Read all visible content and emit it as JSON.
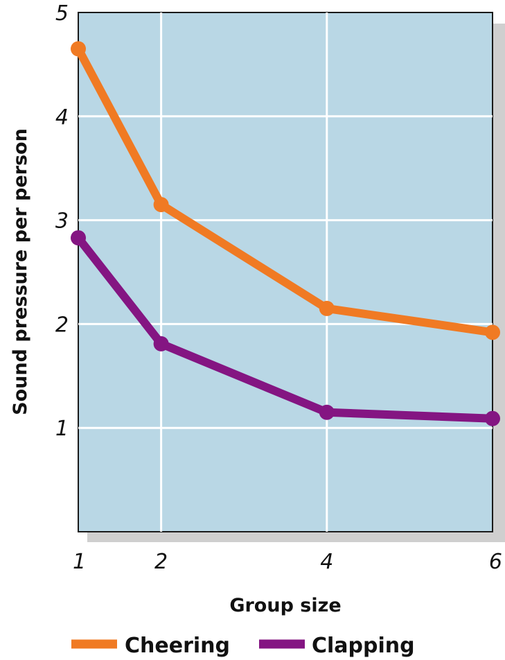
{
  "chart_data": {
    "type": "line",
    "x": [
      1,
      2,
      4,
      6
    ],
    "xticks": [
      "1",
      "2",
      "4",
      "6"
    ],
    "yticks": [
      "1",
      "2",
      "3",
      "4",
      "5"
    ],
    "xlabel": "Group size",
    "ylabel": "Sound pressure per person",
    "xlim": [
      1,
      6
    ],
    "ylim": [
      0,
      5
    ],
    "grid": true,
    "legend_position": "bottom",
    "plot_background": "#b9d7e5",
    "series": [
      {
        "name": "Cheering",
        "color": "#f07a23",
        "values": [
          4.65,
          3.15,
          2.15,
          1.92
        ]
      },
      {
        "name": "Clapping",
        "color": "#841582",
        "values": [
          2.83,
          1.81,
          1.15,
          1.09
        ]
      }
    ]
  }
}
